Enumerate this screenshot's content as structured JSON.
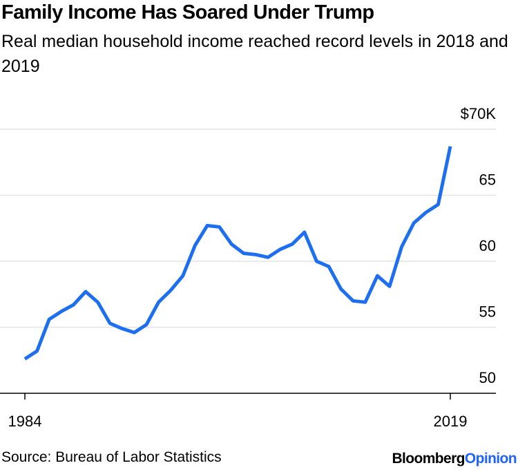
{
  "chart_data": {
    "type": "line",
    "title": "Family Income Has Soared Under Trump",
    "subtitle": "Real median household income reached record levels in 2018 and 2019",
    "xlabel": "",
    "ylabel": "",
    "x_ticks": [
      "1984",
      "2019"
    ],
    "y_ticks": [
      "50",
      "55",
      "60",
      "65",
      "$70K"
    ],
    "y_tick_values": [
      50,
      55,
      60,
      65,
      70
    ],
    "ylim": [
      48,
      71
    ],
    "xlim": [
      1983,
      2022
    ],
    "grid": true,
    "series": [
      {
        "x": [
          1984,
          1985,
          1986,
          1987,
          1988,
          1989,
          1990,
          1991,
          1992,
          1993,
          1994,
          1995,
          1996,
          1997,
          1998,
          1999,
          2000,
          2001,
          2002,
          2003,
          2004,
          2005,
          2006,
          2007,
          2008,
          2009,
          2010,
          2011,
          2012,
          2013,
          2014,
          2015,
          2016,
          2017,
          2018,
          2019
        ],
        "values": [
          52.6,
          53.2,
          55.6,
          56.2,
          56.7,
          57.7,
          56.9,
          55.3,
          54.9,
          54.6,
          55.2,
          56.9,
          57.8,
          58.9,
          61.2,
          62.7,
          62.6,
          61.3,
          60.6,
          60.5,
          60.3,
          60.9,
          61.3,
          62.2,
          60.0,
          59.6,
          57.9,
          57.0,
          56.9,
          58.9,
          58.1,
          61.1,
          62.9,
          63.7,
          64.3,
          68.7
        ],
        "color": "#1e6ff0"
      }
    ],
    "source": "Source: Bureau of Labor Statistics",
    "brand_part1": "Bloomberg",
    "brand_part2": "Opinion",
    "brand_color": "#1e62ff"
  }
}
